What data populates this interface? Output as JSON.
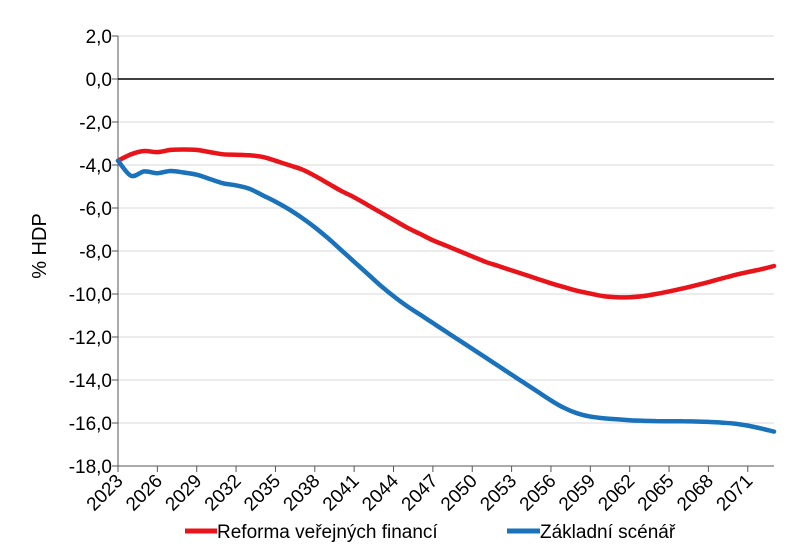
{
  "chart_data": {
    "type": "line",
    "title": "",
    "xlabel": "",
    "ylabel": "% HDP",
    "ylim": [
      -18,
      2
    ],
    "y_ticks": [
      2,
      0,
      -2,
      -4,
      -6,
      -8,
      -10,
      -12,
      -14,
      -16,
      -18
    ],
    "y_tick_labels": [
      "2,0",
      "0,0",
      "-2,0",
      "-4,0",
      "-6,0",
      "-8,0",
      "-10,0",
      "-12,0",
      "-14,0",
      "-16,0",
      "-18,0"
    ],
    "x_ticks": [
      2023,
      2026,
      2029,
      2032,
      2035,
      2038,
      2041,
      2044,
      2047,
      2050,
      2053,
      2056,
      2059,
      2062,
      2065,
      2068,
      2071
    ],
    "x_tick_labels": [
      "2023",
      "2026",
      "2029",
      "2032",
      "2035",
      "2038",
      "2041",
      "2044",
      "2047",
      "2050",
      "2053",
      "2056",
      "2059",
      "2062",
      "2065",
      "2068",
      "2071"
    ],
    "xlim": [
      2023,
      2073
    ],
    "grid": true,
    "legend_position": "bottom",
    "series": [
      {
        "name": "Reforma veřejných financí",
        "color": "#e8141a",
        "x": [
          2023,
          2024,
          2025,
          2026,
          2027,
          2028,
          2029,
          2030,
          2031,
          2032,
          2033,
          2034,
          2035,
          2036,
          2037,
          2038,
          2039,
          2040,
          2041,
          2042,
          2043,
          2044,
          2045,
          2046,
          2047,
          2048,
          2049,
          2050,
          2051,
          2052,
          2053,
          2054,
          2055,
          2056,
          2057,
          2058,
          2059,
          2060,
          2061,
          2062,
          2063,
          2064,
          2065,
          2066,
          2067,
          2068,
          2069,
          2070,
          2071,
          2072,
          2073
        ],
        "values": [
          -3.8,
          -3.5,
          -3.35,
          -3.4,
          -3.3,
          -3.28,
          -3.3,
          -3.4,
          -3.5,
          -3.52,
          -3.55,
          -3.62,
          -3.8,
          -4.0,
          -4.2,
          -4.5,
          -4.85,
          -5.2,
          -5.5,
          -5.85,
          -6.2,
          -6.55,
          -6.9,
          -7.2,
          -7.5,
          -7.75,
          -8.0,
          -8.25,
          -8.5,
          -8.7,
          -8.9,
          -9.1,
          -9.3,
          -9.5,
          -9.68,
          -9.85,
          -9.98,
          -10.1,
          -10.15,
          -10.15,
          -10.1,
          -10.0,
          -9.88,
          -9.75,
          -9.6,
          -9.45,
          -9.28,
          -9.12,
          -8.98,
          -8.85,
          -8.7
        ]
      },
      {
        "name": "Základní scénář",
        "color": "#1a72bb",
        "x": [
          2023,
          2024,
          2025,
          2026,
          2027,
          2028,
          2029,
          2030,
          2031,
          2032,
          2033,
          2034,
          2035,
          2036,
          2037,
          2038,
          2039,
          2040,
          2041,
          2042,
          2043,
          2044,
          2045,
          2046,
          2047,
          2048,
          2049,
          2050,
          2051,
          2052,
          2053,
          2054,
          2055,
          2056,
          2057,
          2058,
          2059,
          2060,
          2061,
          2062,
          2063,
          2064,
          2065,
          2066,
          2067,
          2068,
          2069,
          2070,
          2071,
          2072,
          2073
        ],
        "values": [
          -3.8,
          -4.5,
          -4.3,
          -4.38,
          -4.28,
          -4.35,
          -4.45,
          -4.65,
          -4.85,
          -4.95,
          -5.1,
          -5.4,
          -5.7,
          -6.05,
          -6.45,
          -6.9,
          -7.4,
          -7.95,
          -8.5,
          -9.05,
          -9.6,
          -10.1,
          -10.55,
          -10.95,
          -11.35,
          -11.75,
          -12.15,
          -12.55,
          -12.95,
          -13.35,
          -13.75,
          -14.15,
          -14.55,
          -14.95,
          -15.3,
          -15.55,
          -15.7,
          -15.78,
          -15.83,
          -15.87,
          -15.9,
          -15.91,
          -15.92,
          -15.92,
          -15.93,
          -15.95,
          -15.98,
          -16.03,
          -16.12,
          -16.25,
          -16.4
        ]
      }
    ]
  }
}
